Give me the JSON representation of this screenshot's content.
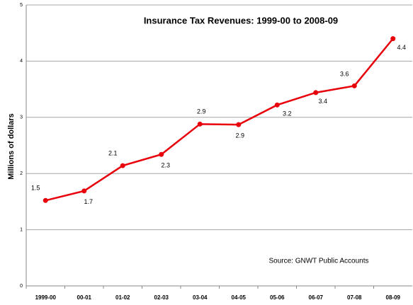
{
  "chart_data": {
    "type": "line",
    "title": "Insurance Tax Revenues: 1999-00 to 2008-09",
    "y_label": "Millions of dollars",
    "annotation": "Source: GNWT Public Accounts",
    "categories": [
      "1999-00",
      "00-01",
      "01-02",
      "02-03",
      "03-04",
      "04-05",
      "05-06",
      "06-07",
      "07-08",
      "08-09"
    ],
    "series": [
      {
        "name": "Insurance Tax Revenues",
        "color": "#e8000b",
        "values": [
          1.52,
          1.69,
          2.14,
          2.34,
          2.88,
          2.87,
          3.22,
          3.44,
          3.56,
          4.4
        ],
        "value_labels": [
          "1.5",
          "1.7",
          "2.1",
          "2.3",
          "2.9",
          "2.9",
          "3.2",
          "3.4",
          "3.6",
          "4.4"
        ]
      }
    ],
    "ylim": [
      0,
      5
    ],
    "yticks": [
      0,
      1,
      2,
      3,
      4,
      5
    ],
    "grid": true
  }
}
